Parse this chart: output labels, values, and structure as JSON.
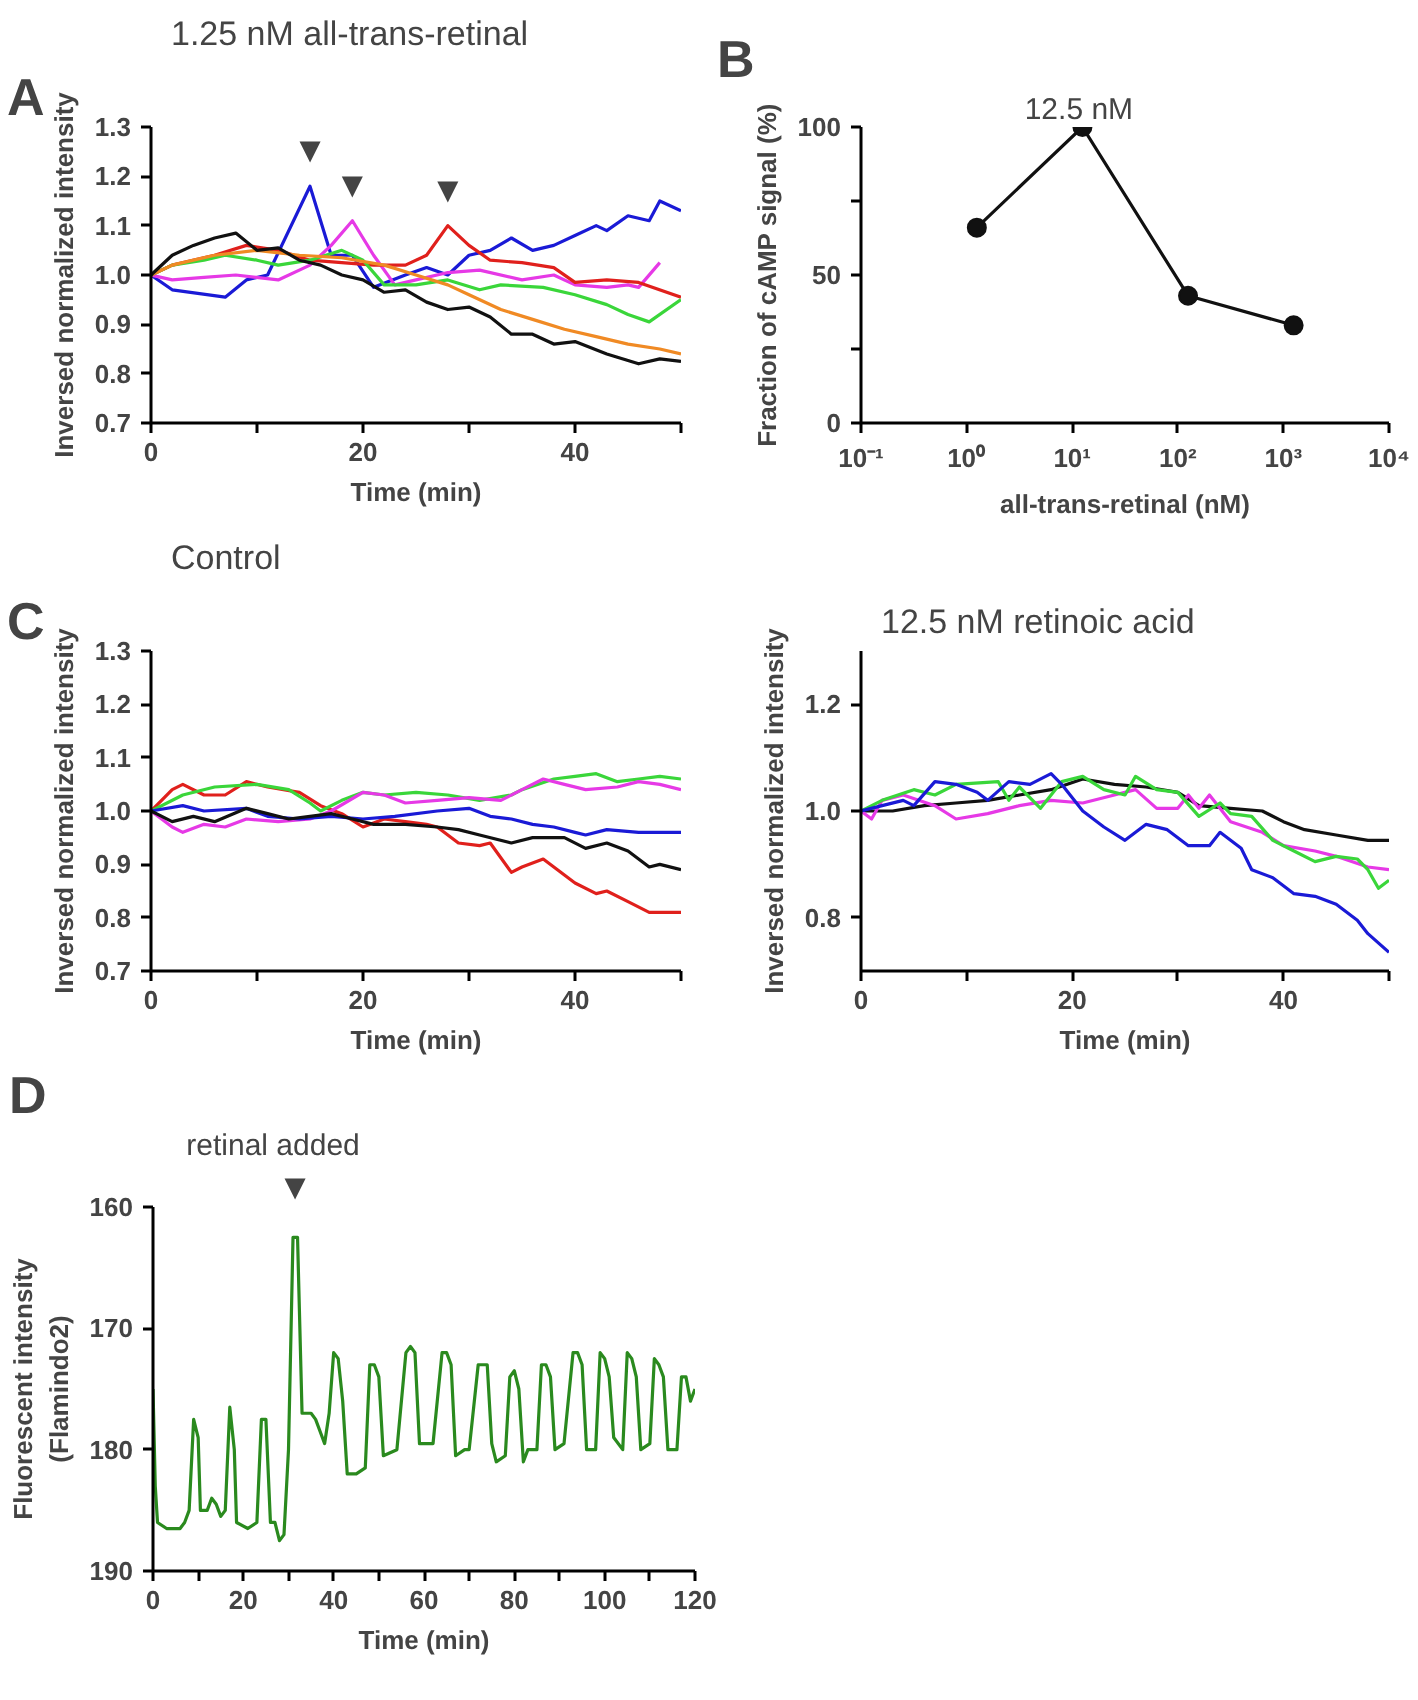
{
  "chart_data": [
    {
      "type": "line",
      "title": "1.25 nM all-trans-retinal",
      "xlabel": "Time (min)",
      "ylabel": "Inversed normalized intensity",
      "xlim": [
        0,
        50
      ],
      "ylim": [
        0.7,
        1.3
      ],
      "xticks": [
        0,
        {
          "value": 10,
          "label": null
        },
        20,
        {
          "value": 30,
          "label": null
        },
        40,
        {
          "value": 50,
          "label": null
        }
      ],
      "yticks": [
        0.7,
        0.8,
        0.9,
        {
          "value": 1.0,
          "label": "1.0"
        },
        1.1,
        1.2,
        1.3
      ],
      "annotations": [
        "A",
        {
          "text": "▼",
          "x": 15,
          "y": 1.18
        },
        {
          "text": "▼",
          "x": 19,
          "y": 1.11
        },
        {
          "text": "▼",
          "x": 28,
          "y": 1.1
        }
      ],
      "series": [
        {
          "color": "#1a1ad6",
          "x": [
            0,
            2,
            7,
            9,
            11,
            15,
            17,
            19,
            21,
            24,
            26,
            28,
            30,
            32,
            34,
            36,
            38,
            40,
            42,
            43,
            45,
            47,
            48,
            50
          ],
          "values": [
            1.0,
            0.97,
            0.955,
            0.99,
            1.0,
            1.18,
            1.04,
            1.04,
            0.975,
            1.0,
            1.015,
            1.0,
            1.04,
            1.05,
            1.075,
            1.05,
            1.06,
            1.08,
            1.1,
            1.09,
            1.12,
            1.11,
            1.15,
            1.13
          ]
        },
        {
          "color": "#e639e6",
          "x": [
            0,
            2,
            5,
            8,
            12,
            15,
            17,
            19,
            21,
            23,
            25,
            28,
            31,
            35,
            38,
            40,
            43,
            45,
            46,
            48
          ],
          "values": [
            1.0,
            0.99,
            0.995,
            1.0,
            0.99,
            1.02,
            1.06,
            1.11,
            1.04,
            0.98,
            0.99,
            1.005,
            1.01,
            0.99,
            1.0,
            0.98,
            0.975,
            0.98,
            0.975,
            1.025
          ]
        },
        {
          "color": "#e0201c",
          "x": [
            0,
            2,
            6,
            9,
            12,
            15,
            18,
            21,
            24,
            26,
            28,
            30,
            32,
            35,
            38,
            40,
            43,
            46,
            50
          ],
          "values": [
            1.0,
            1.02,
            1.04,
            1.06,
            1.05,
            1.03,
            1.025,
            1.02,
            1.02,
            1.04,
            1.1,
            1.06,
            1.03,
            1.025,
            1.015,
            0.985,
            0.99,
            0.985,
            0.955
          ]
        },
        {
          "color": "#3ad63a",
          "x": [
            0,
            2,
            5,
            7,
            10,
            12,
            15,
            18,
            20,
            22,
            25,
            28,
            31,
            33,
            37,
            40,
            43,
            45,
            47,
            50
          ],
          "values": [
            1.0,
            1.02,
            1.03,
            1.04,
            1.03,
            1.02,
            1.03,
            1.05,
            1.03,
            0.98,
            0.98,
            0.99,
            0.97,
            0.98,
            0.975,
            0.96,
            0.94,
            0.92,
            0.905,
            0.95
          ]
        },
        {
          "color": "#f08a24",
          "x": [
            0,
            2,
            6,
            10,
            14,
            18,
            22,
            25,
            28,
            30,
            33,
            36,
            39,
            42,
            45,
            48,
            50
          ],
          "values": [
            1.0,
            1.02,
            1.04,
            1.05,
            1.04,
            1.035,
            1.02,
            1.0,
            0.98,
            0.96,
            0.93,
            0.91,
            0.89,
            0.875,
            0.86,
            0.85,
            0.84
          ]
        },
        {
          "color": "#111111",
          "x": [
            0,
            2,
            4,
            6,
            8,
            10,
            12,
            14,
            16,
            18,
            20,
            22,
            24,
            26,
            28,
            30,
            32,
            34,
            36,
            38,
            40,
            43,
            46,
            48,
            50
          ],
          "values": [
            1.0,
            1.04,
            1.06,
            1.075,
            1.085,
            1.05,
            1.055,
            1.03,
            1.02,
            1.0,
            0.99,
            0.965,
            0.97,
            0.945,
            0.93,
            0.935,
            0.915,
            0.88,
            0.88,
            0.86,
            0.865,
            0.84,
            0.82,
            0.83,
            0.825
          ]
        }
      ]
    },
    {
      "type": "line",
      "xlabel": "all-trans-retinal (nM)",
      "ylabel": "Fraction of cAMP signal (%)",
      "log": "x",
      "marker": "circle",
      "xlim": [
        0.1,
        10000
      ],
      "ylim": [
        0,
        100
      ],
      "xticks": [
        {
          "value": 0.1,
          "label": "10⁻¹"
        },
        {
          "value": 1,
          "label": "10⁰"
        },
        {
          "value": 10,
          "label": "10¹"
        },
        {
          "value": 100,
          "label": "10²"
        },
        {
          "value": 1000,
          "label": "10³"
        },
        {
          "value": 10000,
          "label": "10⁴"
        }
      ],
      "yticks": [
        0,
        {
          "value": 25,
          "label": null
        },
        50,
        {
          "value": 75,
          "label": null
        },
        100
      ],
      "annotations": [
        "B",
        {
          "text": "12.5 nM",
          "x": 12.5,
          "y": 100
        }
      ],
      "series": [
        {
          "color": "#111111",
          "x": [
            1.25,
            12.5,
            125,
            1250
          ],
          "values": [
            66,
            100,
            43,
            33
          ]
        }
      ]
    },
    {
      "type": "line",
      "title": "Control",
      "xlabel": "Time (min)",
      "ylabel": "Inversed normalized intensity",
      "xlim": [
        0,
        50
      ],
      "ylim": [
        0.7,
        1.3
      ],
      "xticks": [
        0,
        {
          "value": 10,
          "label": null
        },
        20,
        {
          "value": 30,
          "label": null
        },
        40,
        {
          "value": 50,
          "label": null
        }
      ],
      "yticks": [
        0.7,
        0.8,
        0.9,
        {
          "value": 1.0,
          "label": "1.0"
        },
        1.1,
        1.2,
        1.3
      ],
      "annotations": [
        "C"
      ],
      "series": [
        {
          "color": "#e0201c",
          "x": [
            0,
            2,
            3,
            5,
            7,
            9,
            11,
            14,
            16,
            18,
            20,
            22,
            24,
            26,
            27,
            29,
            31,
            32,
            34,
            35,
            37,
            39,
            40,
            42,
            43,
            45,
            47,
            50
          ],
          "values": [
            1.0,
            1.04,
            1.05,
            1.03,
            1.03,
            1.055,
            1.045,
            1.035,
            1.01,
            0.995,
            0.97,
            0.985,
            0.98,
            0.975,
            0.97,
            0.94,
            0.935,
            0.94,
            0.885,
            0.895,
            0.91,
            0.88,
            0.865,
            0.845,
            0.85,
            0.83,
            0.81,
            0.81
          ]
        },
        {
          "color": "#3ad63a",
          "x": [
            0,
            3,
            6,
            10,
            13,
            15,
            16,
            18,
            20,
            22,
            25,
            28,
            31,
            34,
            35,
            38,
            40,
            42,
            44,
            46,
            48,
            50
          ],
          "values": [
            1.0,
            1.03,
            1.045,
            1.05,
            1.04,
            1.015,
            1.0,
            1.02,
            1.035,
            1.03,
            1.035,
            1.03,
            1.02,
            1.03,
            1.04,
            1.06,
            1.065,
            1.07,
            1.055,
            1.06,
            1.065,
            1.06
          ]
        },
        {
          "color": "#e639e6",
          "x": [
            0,
            2,
            3,
            5,
            7,
            9,
            12,
            15,
            17,
            20,
            22,
            24,
            27,
            30,
            33,
            35,
            37,
            39,
            41,
            44,
            46,
            48,
            50
          ],
          "values": [
            1.0,
            0.97,
            0.96,
            0.975,
            0.97,
            0.985,
            0.98,
            0.985,
            1.0,
            1.035,
            1.03,
            1.015,
            1.02,
            1.025,
            1.02,
            1.04,
            1.06,
            1.05,
            1.04,
            1.045,
            1.055,
            1.05,
            1.04
          ]
        },
        {
          "color": "#1a1ad6",
          "x": [
            0,
            3,
            5,
            9,
            11,
            14,
            17,
            20,
            23,
            27,
            30,
            32,
            34,
            36,
            38,
            40,
            41,
            43,
            46,
            50
          ],
          "values": [
            1.0,
            1.01,
            1.0,
            1.005,
            0.99,
            0.985,
            0.99,
            0.985,
            0.99,
            1.0,
            1.005,
            0.99,
            0.985,
            0.975,
            0.97,
            0.96,
            0.955,
            0.965,
            0.96,
            0.96
          ]
        },
        {
          "color": "#111111",
          "x": [
            0,
            2,
            4,
            6,
            9,
            11,
            13,
            15,
            17,
            19,
            21,
            24,
            27,
            29,
            31,
            34,
            36,
            39,
            41,
            43,
            45,
            47,
            48,
            50
          ],
          "values": [
            1.0,
            0.98,
            0.99,
            0.98,
            1.005,
            0.995,
            0.985,
            0.99,
            0.995,
            0.985,
            0.975,
            0.975,
            0.97,
            0.965,
            0.955,
            0.94,
            0.95,
            0.95,
            0.93,
            0.94,
            0.925,
            0.895,
            0.9,
            0.89
          ]
        }
      ]
    },
    {
      "type": "line",
      "title": "12.5 nM retinoic acid",
      "xlabel": "Time (min)",
      "ylabel": "Inversed normalized intensity",
      "xlim": [
        0,
        50
      ],
      "ylim": [
        0.7,
        1.3
      ],
      "xticks": [
        0,
        {
          "value": 10,
          "label": null
        },
        20,
        {
          "value": 30,
          "label": null
        },
        40,
        {
          "value": 50,
          "label": null
        }
      ],
      "yticks": [
        0.8,
        {
          "value": 1.0,
          "label": "1.0"
        },
        1.2
      ],
      "series": [
        {
          "color": "#111111",
          "x": [
            0,
            3,
            6,
            9,
            12,
            15,
            18,
            21,
            24,
            27,
            30,
            32,
            35,
            38,
            40,
            42,
            45,
            48,
            50
          ],
          "values": [
            1.0,
            1.0,
            1.01,
            1.015,
            1.02,
            1.03,
            1.04,
            1.06,
            1.05,
            1.045,
            1.035,
            1.01,
            1.005,
            1.0,
            0.98,
            0.965,
            0.955,
            0.945,
            0.945
          ]
        },
        {
          "color": "#e639e6",
          "x": [
            0,
            1,
            2,
            4,
            7,
            9,
            12,
            15,
            18,
            21,
            24,
            26,
            28,
            30,
            31,
            32,
            33,
            35,
            38,
            40,
            43,
            45,
            48,
            50
          ],
          "values": [
            1.0,
            0.985,
            1.02,
            1.03,
            1.01,
            0.985,
            0.995,
            1.01,
            1.02,
            1.015,
            1.03,
            1.04,
            1.005,
            1.005,
            1.03,
            1.005,
            1.03,
            0.98,
            0.96,
            0.935,
            0.925,
            0.915,
            0.895,
            0.89
          ]
        },
        {
          "color": "#3ad63a",
          "x": [
            0,
            2,
            5,
            7,
            9,
            13,
            14,
            15,
            17,
            19,
            21,
            23,
            25,
            26,
            28,
            30,
            32,
            34,
            35,
            37,
            39,
            41,
            43,
            45,
            47,
            48,
            49,
            50
          ],
          "values": [
            1.0,
            1.02,
            1.04,
            1.03,
            1.05,
            1.055,
            1.02,
            1.045,
            1.005,
            1.055,
            1.065,
            1.04,
            1.03,
            1.065,
            1.04,
            1.035,
            0.99,
            1.015,
            0.995,
            0.99,
            0.945,
            0.925,
            0.905,
            0.915,
            0.91,
            0.89,
            0.855,
            0.87
          ]
        },
        {
          "color": "#1a1ad6",
          "x": [
            0,
            2,
            4,
            5,
            7,
            9,
            11,
            12,
            14,
            16,
            18,
            19,
            21,
            23,
            25,
            27,
            29,
            31,
            33,
            34,
            36,
            37,
            39,
            41,
            43,
            45,
            47,
            48,
            50
          ],
          "values": [
            1.0,
            1.01,
            1.02,
            1.01,
            1.055,
            1.05,
            1.035,
            1.02,
            1.055,
            1.05,
            1.07,
            1.05,
            1.0,
            0.97,
            0.945,
            0.975,
            0.965,
            0.935,
            0.935,
            0.96,
            0.93,
            0.89,
            0.875,
            0.845,
            0.84,
            0.825,
            0.795,
            0.77,
            0.735
          ]
        }
      ]
    },
    {
      "type": "line",
      "xlabel": "Time (min)",
      "ylabel": "Fluorescent intensity\n(Flamindo2)",
      "xlim": [
        0,
        120
      ],
      "ylim": [
        190,
        160
      ],
      "xticks": [
        0,
        {
          "value": 10,
          "label": null
        },
        20,
        {
          "value": 30,
          "label": null
        },
        40,
        {
          "value": 50,
          "label": null
        },
        60,
        {
          "value": 70,
          "label": null
        },
        80,
        {
          "value": 90,
          "label": null
        },
        100,
        {
          "value": 110,
          "label": null
        },
        120
      ],
      "yticks": [
        160,
        170,
        180,
        190
      ],
      "annotations": [
        "D",
        {
          "text": "▼",
          "x": 31,
          "y": 162.5
        },
        {
          "text": "retinal added",
          "x": 31,
          "y": 162.5
        }
      ],
      "series": [
        {
          "color": "#2a8a1e",
          "x": [
            0,
            0.5,
            1,
            3,
            6,
            7,
            8,
            9,
            10,
            10.5,
            12,
            13,
            14,
            15,
            16,
            17,
            18,
            18.5,
            21,
            23,
            24,
            25,
            26,
            27,
            28,
            29,
            30,
            31,
            32,
            33,
            35,
            36,
            37,
            38,
            39,
            40,
            41,
            42,
            43,
            45,
            47,
            48,
            49,
            50,
            51,
            54,
            56,
            57,
            58,
            59,
            62,
            64,
            65,
            66,
            67,
            69,
            70,
            72,
            74,
            75,
            76,
            78,
            79,
            80,
            81,
            82,
            83,
            85,
            86,
            87,
            88,
            89,
            91,
            93,
            94,
            95,
            96,
            98,
            99,
            100,
            101,
            102,
            104,
            105,
            106,
            107,
            108,
            110,
            111,
            112,
            113,
            114,
            116,
            117,
            118,
            119,
            120
          ],
          "values": [
            175,
            183,
            186,
            186.5,
            186.5,
            186,
            185,
            177.5,
            179,
            185,
            185,
            184,
            184.5,
            185.5,
            185,
            176.5,
            180,
            186,
            186.5,
            186,
            177.5,
            177.5,
            186,
            186,
            187.5,
            187,
            180,
            162.5,
            162.5,
            177,
            177,
            177.5,
            178.5,
            179.5,
            177,
            172,
            172.5,
            176,
            182,
            182,
            181.5,
            173,
            173,
            174,
            180.5,
            180,
            172,
            171.5,
            172,
            179.5,
            179.5,
            172,
            172,
            173,
            180.5,
            180,
            180,
            173,
            173,
            179.5,
            181,
            180.5,
            174,
            173.5,
            175,
            181,
            180,
            180,
            173,
            173,
            174,
            180,
            179.5,
            172,
            172,
            173,
            180,
            180,
            172,
            172.5,
            174,
            179,
            180,
            172,
            172.5,
            174,
            180,
            179.5,
            172.5,
            173,
            174,
            180,
            180,
            174,
            174,
            176,
            175
          ]
        }
      ]
    }
  ]
}
